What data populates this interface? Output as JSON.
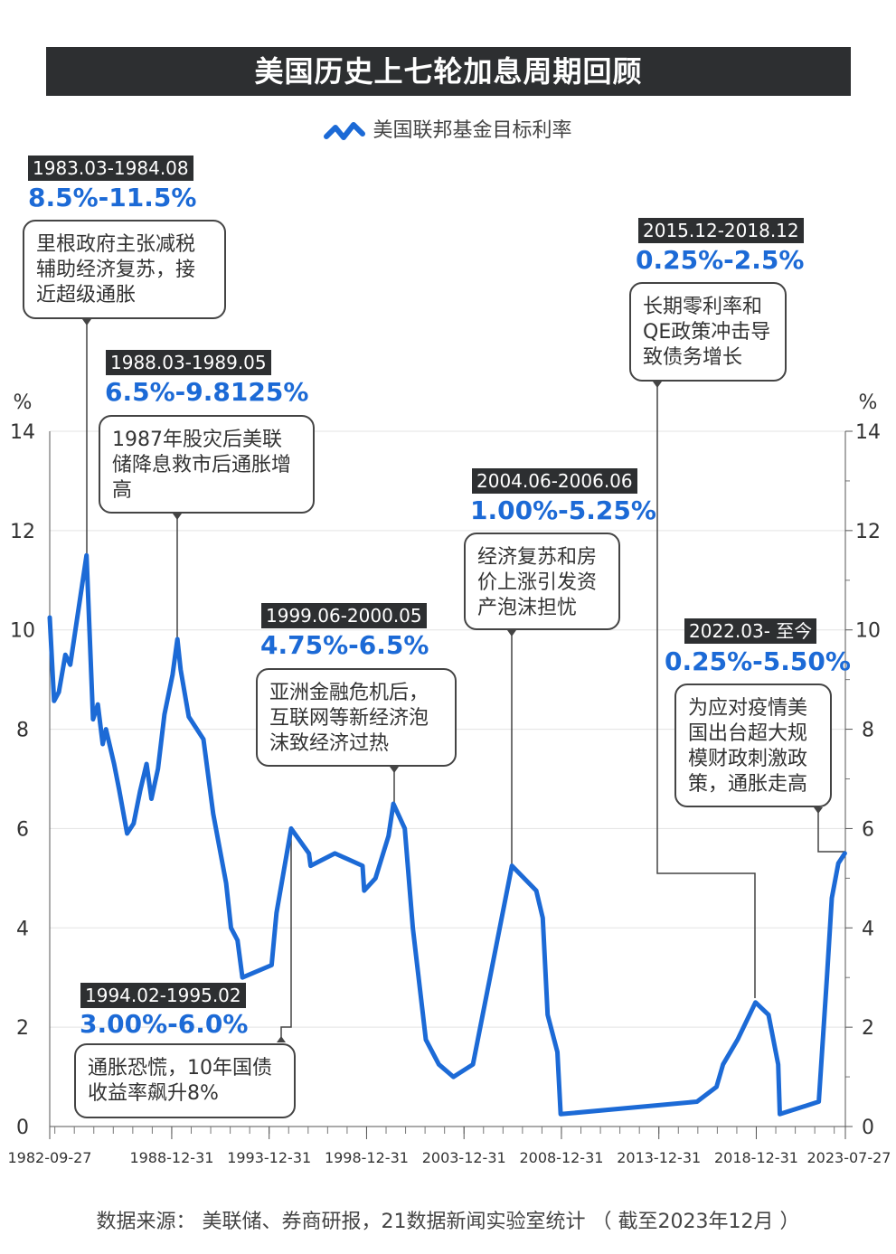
{
  "title": "美国历史上七轮加息周期回顾",
  "legend": {
    "label": "美国联邦基金目标利率",
    "icon": "wave-line-icon",
    "color": "#1c6ad6"
  },
  "footer": "数据来源： 美联储、券商研报，21数据新闻实验室统计 （ 截至2023年12月 ）",
  "annotations": [
    {
      "period": "1983.03-1984.08",
      "range": "8.5%-11.5%",
      "text": "里根政府主张减税辅助经济复苏，接近超级通胀"
    },
    {
      "period": "1988.03-1989.05",
      "range": "6.5%-9.8125%",
      "text": "1987年股灾后美联储降息救市后通胀增高"
    },
    {
      "period": "1994.02-1995.02",
      "range": "3.00%-6.0%",
      "text": "通胀恐慌，10年国债收益率飙升8%"
    },
    {
      "period": "1999.06-2000.05",
      "range": "4.75%-6.5%",
      "text": "亚洲金融危机后，互联网等新经济泡沫致经济过热"
    },
    {
      "period": "2004.06-2006.06",
      "range": "1.00%-5.25%",
      "text": "经济复苏和房价上涨引发资产泡沫担忧"
    },
    {
      "period": "2015.12-2018.12",
      "range": "0.25%-2.5%",
      "text": "长期零利率和QE政策冲击导致债务增长"
    },
    {
      "period": "2022.03- 至今",
      "range": "0.25%-5.50%",
      "text": "为应对疫情美国出台超大规模财政刺激政策，通胀走高"
    }
  ],
  "chart_data": {
    "type": "line",
    "title": "美国历史上七轮加息周期回顾",
    "ylabel": "%",
    "ylabel_right": "%",
    "ylim": [
      0,
      14
    ],
    "yticks": [
      0,
      2,
      4,
      6,
      8,
      10,
      12,
      14
    ],
    "xlim": [
      "1982-09-27",
      "2023-07-27"
    ],
    "xticks": [
      "1982-09-27",
      "1988-12-31",
      "1993-12-31",
      "1998-12-31",
      "2003-12-31",
      "2008-12-31",
      "2013-12-31",
      "2018-12-31",
      "2023-07-27"
    ],
    "grid": "horizontal",
    "color": "#1c6ad6",
    "series": [
      {
        "name": "美国联邦基金目标利率",
        "points": [
          [
            "1982-09-27",
            10.25
          ],
          [
            "1982-12",
            8.57
          ],
          [
            "1983-03",
            8.75
          ],
          [
            "1983-07",
            9.5
          ],
          [
            "1983-10",
            9.3
          ],
          [
            "1984-08",
            11.5
          ],
          [
            "1984-12",
            8.2
          ],
          [
            "1985-03",
            8.5
          ],
          [
            "1985-06",
            7.7
          ],
          [
            "1985-08",
            8.0
          ],
          [
            "1986-01",
            7.3
          ],
          [
            "1986-04",
            6.8
          ],
          [
            "1986-09",
            5.9
          ],
          [
            "1987-01",
            6.1
          ],
          [
            "1987-05",
            6.75
          ],
          [
            "1987-09",
            7.3
          ],
          [
            "1987-12",
            6.6
          ],
          [
            "1988-04",
            7.2
          ],
          [
            "1988-08",
            8.3
          ],
          [
            "1989-01",
            9.1
          ],
          [
            "1989-04",
            9.8125
          ],
          [
            "1989-06",
            9.2
          ],
          [
            "1989-11",
            8.25
          ],
          [
            "1990-08",
            7.8
          ],
          [
            "1991-02",
            6.3
          ],
          [
            "1991-10",
            4.9
          ],
          [
            "1992-01",
            4.0
          ],
          [
            "1992-05",
            3.75
          ],
          [
            "1992-08",
            3.0
          ],
          [
            "1994-02",
            3.25
          ],
          [
            "1994-05",
            4.3
          ],
          [
            "1995-02",
            6.0
          ],
          [
            "1996-01",
            5.5
          ],
          [
            "1996-02",
            5.25
          ],
          [
            "1997-05",
            5.5
          ],
          [
            "1998-10",
            5.25
          ],
          [
            "1998-11",
            4.75
          ],
          [
            "1999-06",
            5.0
          ],
          [
            "2000-02",
            5.85
          ],
          [
            "2000-05",
            6.5
          ],
          [
            "2000-12",
            6.0
          ],
          [
            "2001-05",
            4.0
          ],
          [
            "2002-01",
            1.75
          ],
          [
            "2002-09",
            1.25
          ],
          [
            "2003-06",
            1.0
          ],
          [
            "2004-06",
            1.25
          ],
          [
            "2006-06",
            5.25
          ],
          [
            "2007-09",
            4.75
          ],
          [
            "2008-01",
            4.2
          ],
          [
            "2008-04",
            2.25
          ],
          [
            "2008-10",
            1.5
          ],
          [
            "2008-12",
            0.25
          ],
          [
            "2015-12",
            0.5
          ],
          [
            "2016-12",
            0.8
          ],
          [
            "2017-04",
            1.25
          ],
          [
            "2018-01",
            1.75
          ],
          [
            "2018-12",
            2.5
          ],
          [
            "2019-08",
            2.25
          ],
          [
            "2020-02",
            1.25
          ],
          [
            "2020-03",
            0.25
          ],
          [
            "2022-03",
            0.5
          ],
          [
            "2022-08",
            3.0
          ],
          [
            "2022-11",
            4.6
          ],
          [
            "2023-03",
            5.3
          ],
          [
            "2023-07",
            5.5
          ]
        ]
      }
    ]
  }
}
